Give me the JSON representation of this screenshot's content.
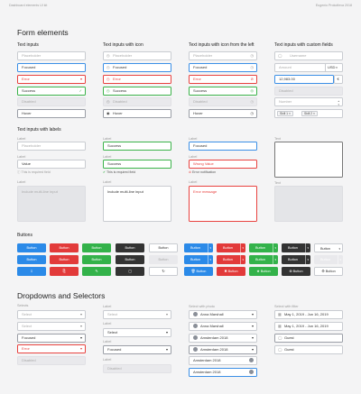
{
  "header": {
    "left": "Dashboard elements UI kit",
    "right": "Eugenio Prokofieva 2018"
  },
  "form_title": "Form elements",
  "col_titles": {
    "ti": "Text inputs",
    "tic": "Text inputs with icon",
    "til": "Text inputs with icon from the left",
    "tcf": "Text inputs with custom fields"
  },
  "inputs": {
    "placeholder": "Placeholder",
    "focused": "Focused",
    "error": "Error",
    "success": "Success",
    "disabled": "Disabled",
    "hover": "Hover"
  },
  "custom": {
    "username": "Username",
    "amount": "Amount",
    "currency": "USD",
    "value": "12,983.00",
    "currency_symbol": "€",
    "number": "Number",
    "skill1": "Skill 1",
    "skill2": "Skill 2"
  },
  "labels_title": "Text inputs with labels",
  "labelled": {
    "label": "Label",
    "placeholder": "Placeholder",
    "value": "Value",
    "required_note": "This is required field",
    "multiline_ph": "Include multi-line input",
    "success": "Success",
    "focused": "Focused",
    "wrong": "Wrong Value",
    "error_note": "Error notification",
    "error_msg": "Error message",
    "text": "Text"
  },
  "buttons_title": "Buttons",
  "button_label": "Button",
  "dropdowns_title": "Dropdowns and Selectors",
  "dd": {
    "selects": "Selects",
    "label": "Label",
    "select": "Select",
    "focused": "Focused",
    "error": "Error",
    "disabled": "Disabled",
    "amsterdam": "Amsterdam 2018",
    "with_photo": "Select with photo",
    "anna": "Anna Marshall",
    "with_filter": "Select with filter",
    "date_range": "May 1, 2019 - Jun 16, 2019",
    "guest": "Guest"
  },
  "colors": {
    "blue": "#2b8ae8",
    "red": "#e23a3a",
    "green": "#33b24a",
    "dark": "#333333"
  }
}
